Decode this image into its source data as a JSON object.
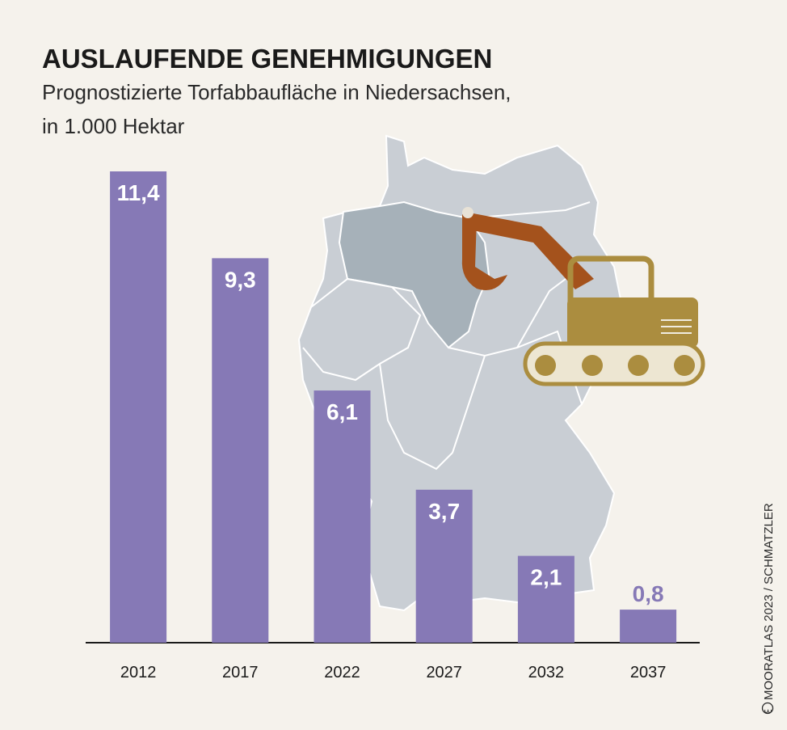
{
  "chart_data": {
    "type": "bar",
    "title": "AUSLAUFENDE GENEHMIGUNGEN",
    "subtitle": [
      "Prognostizierte Torfabbaufläche in Niedersachsen,",
      "in 1.000 Hektar"
    ],
    "categories": [
      "2012",
      "2017",
      "2022",
      "2027",
      "2032",
      "2037"
    ],
    "values": [
      11.4,
      9.3,
      6.1,
      3.7,
      2.1,
      0.8
    ],
    "value_labels": [
      "11,4",
      "9,3",
      "6,1",
      "3,7",
      "2,1",
      "0,8"
    ],
    "color": "#8679b6",
    "credit": "MOORATLAS 2023 / SCHMATZLER"
  }
}
